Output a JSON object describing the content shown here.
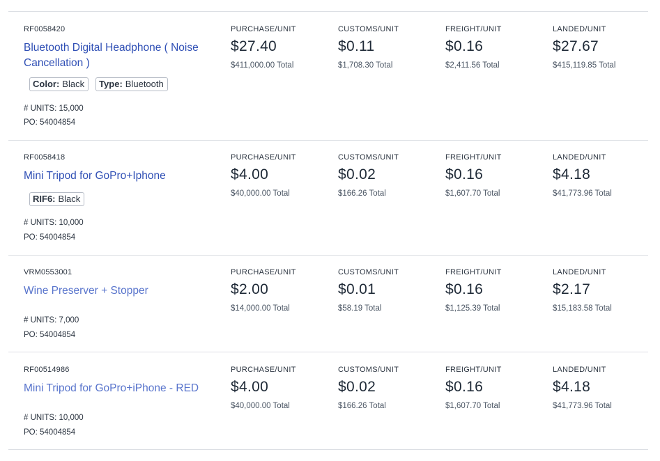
{
  "rows": [
    {
      "sku": "RF0058420",
      "title": "Bluetooth Digital Headphone ( Noise Cancellation )",
      "attributes": [
        {
          "key": "Color:",
          "value": "Black"
        },
        {
          "key": "Type:",
          "value": "Bluetooth"
        }
      ],
      "units": "# UNITS: 15,000",
      "po": "PO: 54004854",
      "purchase": {
        "label": "PURCHASE/UNIT",
        "unit": "$27.40",
        "total": "$411,000.00 Total"
      },
      "customs": {
        "label": "CUSTOMS/UNIT",
        "unit": "$0.11",
        "total": "$1,708.30 Total"
      },
      "freight": {
        "label": "FREIGHT/UNIT",
        "unit": "$0.16",
        "total": "$2,411.56 Total"
      },
      "landed": {
        "label": "LANDED/UNIT",
        "unit": "$27.67",
        "total": "$415,119.85 Total"
      }
    },
    {
      "sku": "RF0058418",
      "title": "Mini Tripod for GoPro+Iphone",
      "attributes": [
        {
          "key": "RIF6:",
          "value": "Black"
        }
      ],
      "units": "# UNITS: 10,000",
      "po": "PO: 54004854",
      "purchase": {
        "label": "PURCHASE/UNIT",
        "unit": "$4.00",
        "total": "$40,000.00 Total"
      },
      "customs": {
        "label": "CUSTOMS/UNIT",
        "unit": "$0.02",
        "total": "$166.26 Total"
      },
      "freight": {
        "label": "FREIGHT/UNIT",
        "unit": "$0.16",
        "total": "$1,607.70 Total"
      },
      "landed": {
        "label": "LANDED/UNIT",
        "unit": "$4.18",
        "total": "$41,773.96 Total"
      }
    },
    {
      "sku": "VRM0553001",
      "title": "Wine Preserver + Stopper",
      "attributes": [],
      "units": "# UNITS: 7,000",
      "po": "PO: 54004854",
      "purchase": {
        "label": "PURCHASE/UNIT",
        "unit": "$2.00",
        "total": "$14,000.00 Total"
      },
      "customs": {
        "label": "CUSTOMS/UNIT",
        "unit": "$0.01",
        "total": "$58.19 Total"
      },
      "freight": {
        "label": "FREIGHT/UNIT",
        "unit": "$0.16",
        "total": "$1,125.39 Total"
      },
      "landed": {
        "label": "LANDED/UNIT",
        "unit": "$2.17",
        "total": "$15,183.58 Total"
      }
    },
    {
      "sku": "RF00514986",
      "title": "Mini Tripod for GoPro+iPhone - RED",
      "attributes": [],
      "units": "# UNITS: 10,000",
      "po": "PO: 54004854",
      "purchase": {
        "label": "PURCHASE/UNIT",
        "unit": "$4.00",
        "total": "$40,000.00 Total"
      },
      "customs": {
        "label": "CUSTOMS/UNIT",
        "unit": "$0.02",
        "total": "$166.26 Total"
      },
      "freight": {
        "label": "FREIGHT/UNIT",
        "unit": "$0.16",
        "total": "$1,607.70 Total"
      },
      "landed": {
        "label": "LANDED/UNIT",
        "unit": "$4.18",
        "total": "$41,773.96 Total"
      }
    }
  ]
}
